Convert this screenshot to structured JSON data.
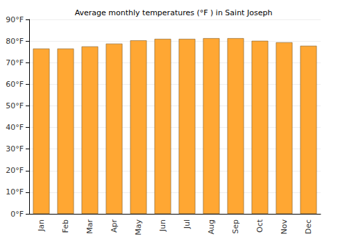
{
  "chart_data": {
    "type": "bar",
    "title": "Average monthly temperatures (°F ) in Saint Joseph",
    "categories": [
      "Jan",
      "Feb",
      "Mar",
      "Apr",
      "May",
      "Jun",
      "Jul",
      "Aug",
      "Sep",
      "Oct",
      "Nov",
      "Dec"
    ],
    "values": [
      76.5,
      76.5,
      77.5,
      78.8,
      80.3,
      81,
      81,
      81.3,
      81.3,
      80.1,
      79.4,
      77.8
    ],
    "color": "#ffa733",
    "ylim": [
      0,
      90
    ],
    "yticks": [
      {
        "value": 0,
        "label": "0°F"
      },
      {
        "value": 10,
        "label": "10°F"
      },
      {
        "value": 20,
        "label": "20°F"
      },
      {
        "value": 30,
        "label": "30°F"
      },
      {
        "value": 40,
        "label": "40°F"
      },
      {
        "value": 50,
        "label": "50°F"
      },
      {
        "value": 60,
        "label": "60°F"
      },
      {
        "value": 70,
        "label": "70°F"
      },
      {
        "value": 80,
        "label": "80°F"
      },
      {
        "value": 90,
        "label": "90°F"
      }
    ],
    "grid": true
  }
}
